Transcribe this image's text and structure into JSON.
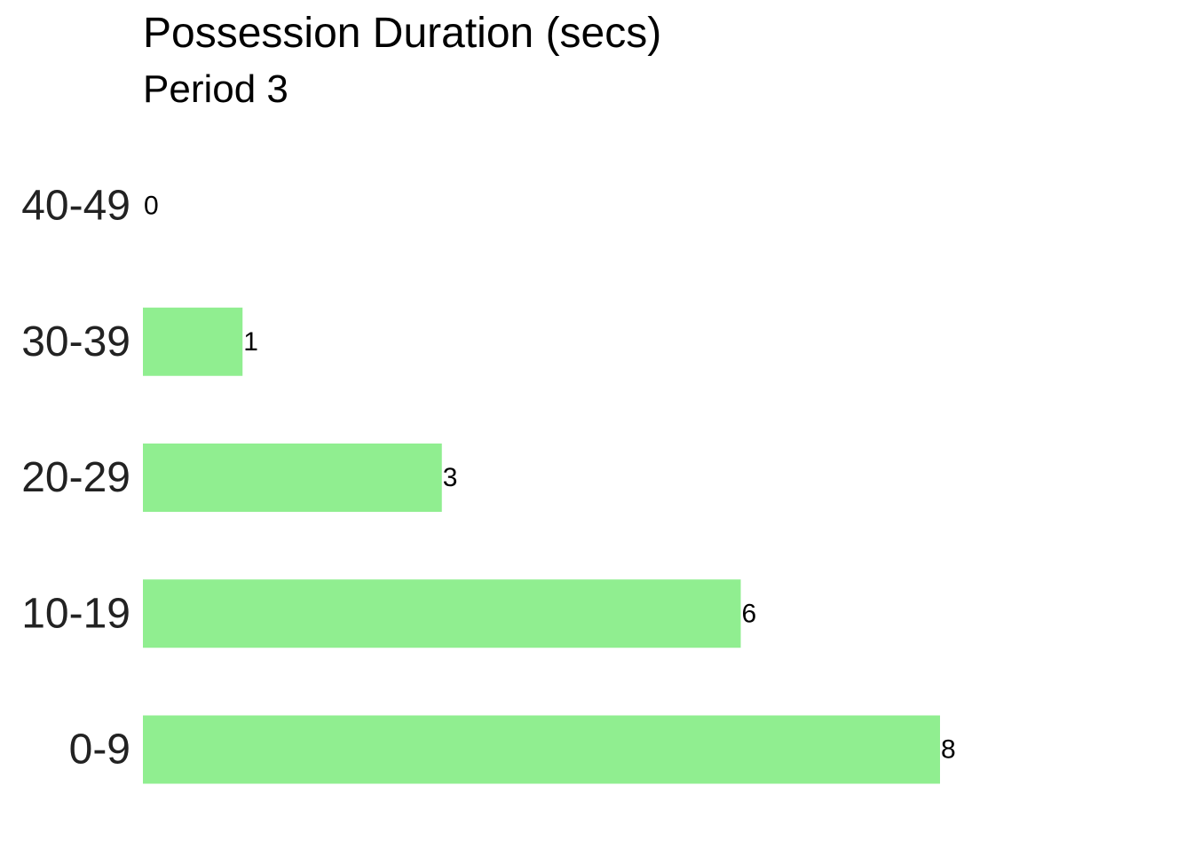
{
  "chart_data": {
    "type": "bar",
    "orientation": "horizontal",
    "title": "Possession Duration (secs)",
    "subtitle": "Period 3",
    "categories": [
      "0-9",
      "10-19",
      "20-29",
      "30-39",
      "40-49"
    ],
    "values": [
      8,
      6,
      3,
      1,
      0
    ],
    "data_labels": [
      "8",
      "6",
      "3",
      "1",
      "0"
    ],
    "bar_color": "#90EE90",
    "xlabel": "",
    "ylabel": "",
    "xlim": [
      0,
      8
    ],
    "grid": false,
    "legend": "none"
  }
}
